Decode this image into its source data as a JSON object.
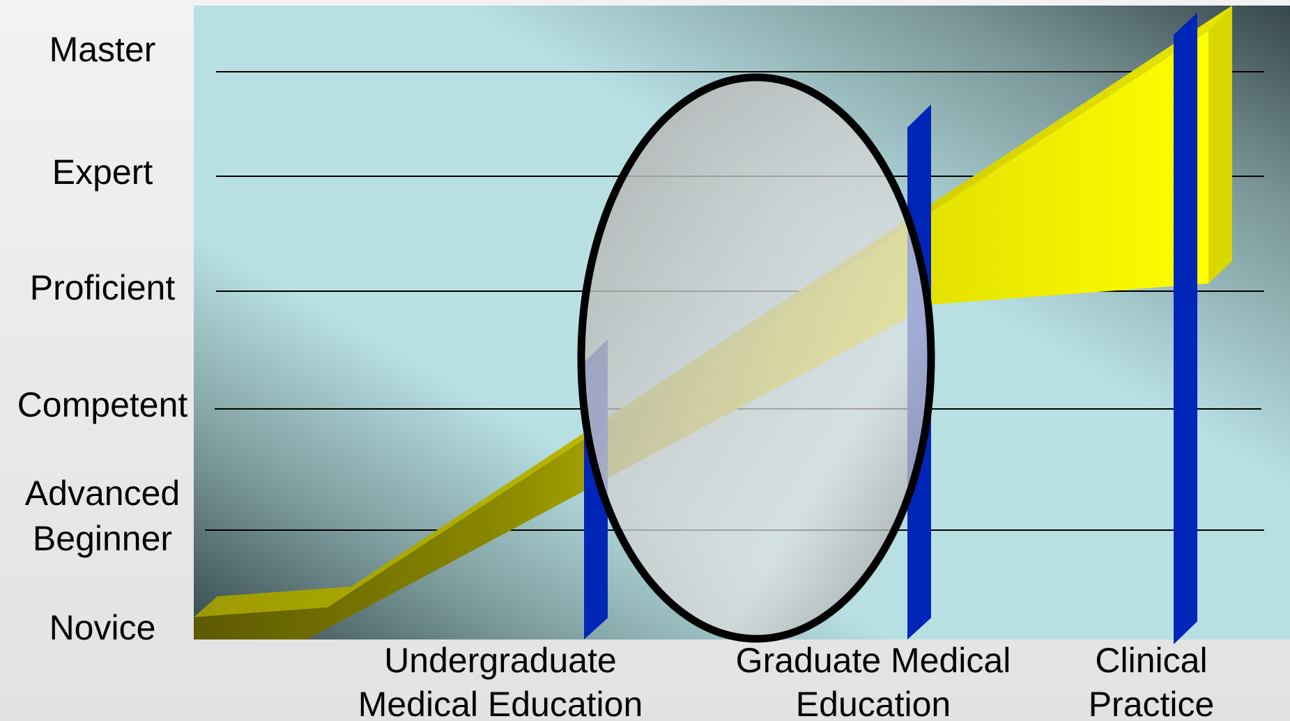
{
  "levels": [
    {
      "lines": [
        "Master"
      ]
    },
    {
      "lines": [
        "Expert"
      ]
    },
    {
      "lines": [
        "Proficient"
      ]
    },
    {
      "lines": [
        "Competent"
      ]
    },
    {
      "lines": [
        "Advanced",
        "Beginner"
      ]
    },
    {
      "lines": [
        "Novice"
      ]
    }
  ],
  "stages": [
    {
      "lines": [
        "Undergraduate",
        "Medical Education"
      ]
    },
    {
      "lines": [
        "Graduate Medical",
        "Education"
      ]
    },
    {
      "lines": [
        "Clinical",
        "Practice"
      ]
    }
  ],
  "colors": {
    "progression_band": "#ffff00",
    "stage_bars": "#0026b8",
    "focus_ellipse_stroke": "#000000",
    "grid_lines": "#000000"
  }
}
